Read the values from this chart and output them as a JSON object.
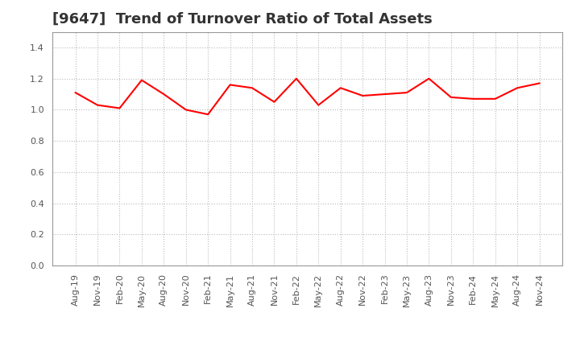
{
  "title": "[9647]  Trend of Turnover Ratio of Total Assets",
  "x_labels": [
    "Aug-19",
    "Nov-19",
    "Feb-20",
    "May-20",
    "Aug-20",
    "Nov-20",
    "Feb-21",
    "May-21",
    "Aug-21",
    "Nov-21",
    "Feb-22",
    "May-22",
    "Aug-22",
    "Nov-22",
    "Feb-23",
    "May-23",
    "Aug-23",
    "Nov-23",
    "Feb-24",
    "May-24",
    "Aug-24",
    "Nov-24"
  ],
  "y_values": [
    1.11,
    1.03,
    1.01,
    1.19,
    1.1,
    1.0,
    0.97,
    1.16,
    1.14,
    1.05,
    1.2,
    1.03,
    1.14,
    1.09,
    1.1,
    1.11,
    1.2,
    1.08,
    1.07,
    1.07,
    1.14,
    1.17
  ],
  "line_color": "#ff0000",
  "line_width": 1.5,
  "ylim": [
    0.0,
    1.5
  ],
  "yticks": [
    0.0,
    0.2,
    0.4,
    0.6,
    0.8,
    1.0,
    1.2,
    1.4
  ],
  "grid_color": "#bbbbbb",
  "spine_color": "#999999",
  "background_color": "#ffffff",
  "title_fontsize": 13,
  "tick_fontsize": 8,
  "title_color": "#333333",
  "tick_color": "#555555"
}
